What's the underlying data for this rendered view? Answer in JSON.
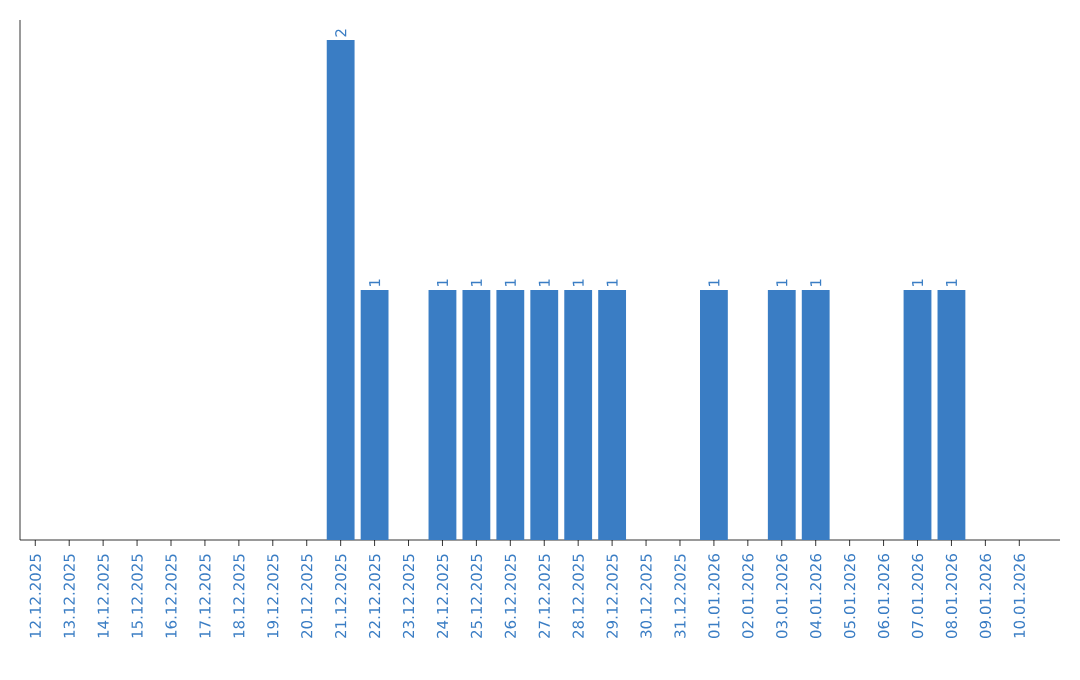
{
  "chart_data": {
    "type": "bar",
    "categories": [
      "12.12.2025",
      "13.12.2025",
      "14.12.2025",
      "15.12.2025",
      "16.12.2025",
      "17.12.2025",
      "18.12.2025",
      "19.12.2025",
      "20.12.2025",
      "21.12.2025",
      "22.12.2025",
      "23.12.2025",
      "24.12.2025",
      "25.12.2025",
      "26.12.2025",
      "27.12.2025",
      "28.12.2025",
      "29.12.2025",
      "30.12.2025",
      "31.12.2025",
      "01.01.2026",
      "02.01.2026",
      "03.01.2026",
      "04.01.2026",
      "05.01.2026",
      "06.01.2026",
      "07.01.2026",
      "08.01.2026",
      "09.01.2026",
      "10.01.2026"
    ],
    "values": [
      0,
      0,
      0,
      0,
      0,
      0,
      0,
      0,
      0,
      2,
      1,
      0,
      1,
      1,
      1,
      1,
      1,
      1,
      0,
      0,
      1,
      0,
      1,
      1,
      0,
      0,
      1,
      1,
      0,
      0
    ],
    "value_labels": [
      null,
      null,
      null,
      null,
      null,
      null,
      null,
      null,
      null,
      "2",
      "1",
      null,
      "1",
      "1",
      "1",
      "1",
      "1",
      "1",
      null,
      null,
      "1",
      null,
      "1",
      "1",
      null,
      null,
      "1",
      "1",
      null,
      null
    ],
    "color": "#3a7dc4"
  }
}
